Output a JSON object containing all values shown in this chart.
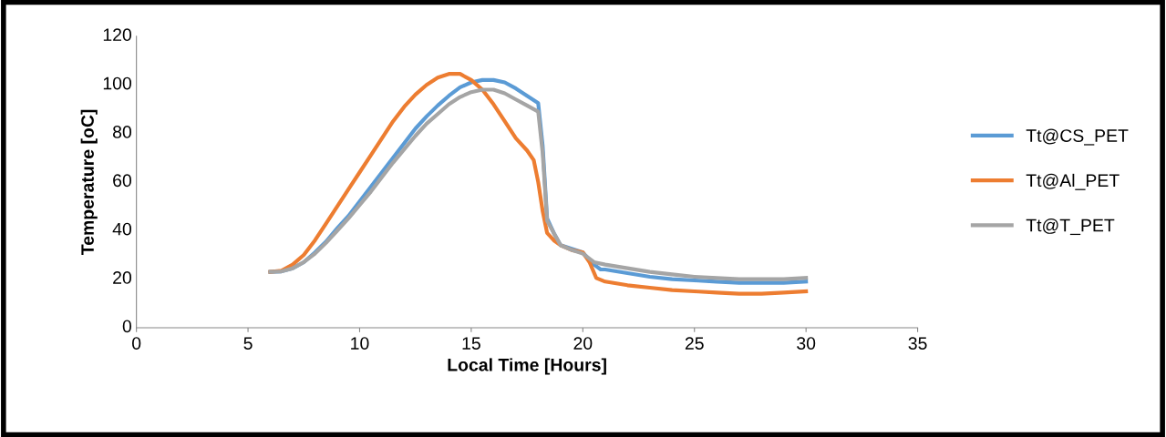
{
  "chart_data": {
    "type": "line",
    "xlabel": "Local Time [Hours]",
    "ylabel": "Temperature [oC]",
    "xlim": [
      0,
      35
    ],
    "xticks": [
      0,
      5,
      10,
      15,
      20,
      25,
      30,
      35
    ],
    "ylim": [
      0,
      120
    ],
    "yticks": [
      0,
      20,
      40,
      60,
      80,
      100,
      120
    ],
    "grid": false,
    "legend": "right",
    "marker": "none",
    "line_style": "solid",
    "series": [
      {
        "name": "Tt@CS_PET",
        "color": "#5b9bd5",
        "x": [
          6,
          6.5,
          7,
          7.5,
          8,
          8.5,
          9,
          9.5,
          10,
          10.5,
          11,
          11.5,
          12,
          12.5,
          13,
          13.5,
          14,
          14.5,
          15,
          15.5,
          16,
          16.5,
          17,
          17.5,
          18,
          18.2,
          18.4,
          18.7,
          19,
          19.5,
          20,
          20.5,
          20.8,
          21,
          22,
          23,
          24,
          25,
          26,
          27,
          28,
          29,
          30
        ],
        "values": [
          23,
          23.2,
          24.5,
          27,
          31,
          35.5,
          41,
          46,
          52,
          58,
          64,
          70,
          76,
          82,
          87,
          91.5,
          95.5,
          99,
          101,
          102,
          102,
          101,
          98.5,
          95.5,
          92.5,
          75,
          45,
          39,
          34,
          32.5,
          31,
          26,
          24,
          24,
          22.5,
          21,
          20,
          19.5,
          19,
          18.5,
          18.5,
          18.5,
          19
        ]
      },
      {
        "name": "Tt@Al_PET",
        "color": "#ed7d31",
        "x": [
          6,
          6.5,
          7,
          7.5,
          8,
          8.5,
          9,
          9.5,
          10,
          10.5,
          11,
          11.5,
          12,
          12.5,
          13,
          13.5,
          14,
          14.5,
          15,
          15.5,
          16,
          16.5,
          17,
          17.5,
          17.8,
          18,
          18.2,
          18.4,
          18.7,
          19,
          19.5,
          20,
          20.3,
          20.6,
          21,
          22,
          23,
          24,
          25,
          26,
          27,
          28,
          29,
          30
        ],
        "values": [
          23,
          23.5,
          26,
          30,
          36,
          43,
          50,
          57,
          64,
          71,
          78,
          85,
          91,
          96,
          100,
          103,
          104.5,
          104.5,
          102,
          98,
          92,
          85,
          78,
          73,
          69,
          60,
          48,
          39,
          36,
          34,
          32,
          31,
          27,
          20.5,
          19,
          17.5,
          16.5,
          15.5,
          15,
          14.5,
          14,
          14,
          14.5,
          15
        ]
      },
      {
        "name": "Tt@T_PET",
        "color": "#a5a5a5",
        "x": [
          6,
          6.5,
          7,
          7.5,
          8,
          8.5,
          9,
          9.5,
          10,
          10.5,
          11,
          11.5,
          12,
          12.5,
          13,
          13.5,
          14,
          14.5,
          15,
          15.5,
          16,
          16.5,
          17,
          17.5,
          18,
          18.2,
          18.4,
          18.7,
          19,
          19.5,
          20,
          20.5,
          21,
          22,
          23,
          24,
          25,
          26,
          27,
          28,
          29,
          30
        ],
        "values": [
          23,
          23.2,
          24.5,
          27,
          30.5,
          35,
          40,
          45,
          50.5,
          56,
          62,
          68,
          73.5,
          79,
          84,
          88,
          92,
          95,
          97,
          98,
          98,
          96.5,
          94,
          91.5,
          89,
          72,
          44,
          39,
          34,
          32,
          30.5,
          27,
          26,
          24.5,
          23,
          22,
          21,
          20.5,
          20,
          20,
          20,
          20.5
        ]
      }
    ]
  }
}
